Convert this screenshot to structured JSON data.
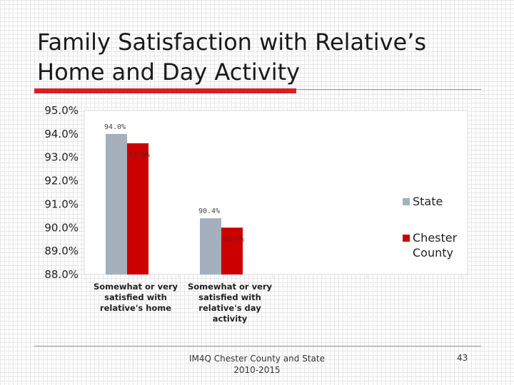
{
  "slide": {
    "title_line1": "Family Satisfaction with Relative’s",
    "title_line2": "Home and Day Activity",
    "footer_line1": "IM4Q Chester County and State",
    "footer_line2": "2010-2015",
    "page_number": "43",
    "accent_color": "#d62027"
  },
  "chart_data": {
    "type": "bar",
    "categories": [
      [
        "Somewhat or very",
        "satisfied with",
        "relative's home"
      ],
      [
        "Somewhat or very",
        "satisfied with",
        "relative's day",
        "activity"
      ]
    ],
    "series": [
      {
        "name": "State",
        "values": [
          94.0,
          90.4
        ],
        "labels": [
          "94.0%",
          "90.4%"
        ],
        "color": "#a5b0bc"
      },
      {
        "name": "Chester County",
        "legend_lines": [
          "Chester",
          "County"
        ],
        "values": [
          93.6,
          90.0
        ],
        "labels": [
          "93.6%",
          "90.0%"
        ],
        "color": "#cc0000"
      }
    ],
    "ylim": [
      88.0,
      95.0
    ],
    "yticks": [
      "88.0%",
      "89.0%",
      "90.0%",
      "91.0%",
      "92.0%",
      "93.0%",
      "94.0%",
      "95.0%"
    ],
    "ytick_values": [
      88,
      89,
      90,
      91,
      92,
      93,
      94,
      95
    ],
    "legend_position": "right"
  }
}
